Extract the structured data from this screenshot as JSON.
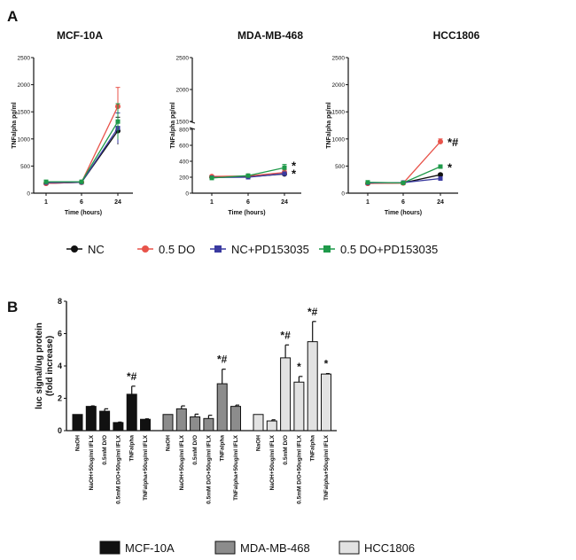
{
  "panel_a_label": "A",
  "panel_b_label": "B",
  "chart_data": [
    {
      "type": "line",
      "title": "MCF-10A",
      "xlabel": "Time (hours)",
      "ylabel": "TNFalpha pg/ml",
      "x": [
        "1",
        "6",
        "24"
      ],
      "yticks": [
        0,
        500,
        1000,
        1500,
        2000,
        2500
      ],
      "ylim": [
        0,
        2500
      ],
      "series": [
        {
          "name": "NC",
          "values": [
            180,
            200,
            1150
          ],
          "err": [
            20,
            15,
            250
          ]
        },
        {
          "name": "0.5 DO",
          "values": [
            180,
            200,
            1600
          ],
          "err": [
            20,
            15,
            350
          ]
        },
        {
          "name": "NC+PD153035",
          "values": [
            195,
            200,
            1200
          ],
          "err": [
            20,
            15,
            280
          ]
        },
        {
          "name": "0.5 DO+PD153035",
          "values": [
            210,
            210,
            1320
          ],
          "err": [
            20,
            15,
            330
          ]
        }
      ],
      "annotations": []
    },
    {
      "type": "line",
      "title": "MDA-MB-468",
      "xlabel": "Time (hours)",
      "ylabel": "TNFalpha pg/ml",
      "x": [
        "1",
        "6",
        "24"
      ],
      "yticks": [
        0,
        200,
        400,
        600,
        800,
        1500,
        2000,
        2500
      ],
      "ylim": [
        0,
        2500
      ],
      "axis_break": [
        800,
        1500
      ],
      "series": [
        {
          "name": "NC",
          "values": [
            200,
            205,
            240
          ],
          "err": [
            10,
            10,
            20
          ]
        },
        {
          "name": "0.5 DO",
          "values": [
            210,
            215,
            260
          ],
          "err": [
            10,
            10,
            30
          ]
        },
        {
          "name": "NC+PD153035",
          "values": [
            195,
            200,
            245
          ],
          "err": [
            10,
            10,
            20
          ]
        },
        {
          "name": "0.5 DO+PD153035",
          "values": [
            190,
            220,
            320
          ],
          "err": [
            10,
            10,
            40
          ]
        }
      ],
      "annotations": [
        {
          "text": "*",
          "at_value": 360
        },
        {
          "text": "*",
          "at_value": 260
        }
      ]
    },
    {
      "type": "line",
      "title": "HCC1806",
      "xlabel": "Time (hours)",
      "ylabel": "TNFalpha pg/ml",
      "x": [
        "1",
        "6",
        "24"
      ],
      "yticks": [
        0,
        500,
        1000,
        1500,
        2000,
        2500
      ],
      "ylim": [
        0,
        2500
      ],
      "series": [
        {
          "name": "NC",
          "values": [
            180,
            190,
            340
          ],
          "err": [
            15,
            10,
            25
          ]
        },
        {
          "name": "0.5 DO",
          "values": [
            180,
            185,
            950
          ],
          "err": [
            15,
            10,
            50
          ]
        },
        {
          "name": "NC+PD153035",
          "values": [
            190,
            195,
            270
          ],
          "err": [
            15,
            10,
            25
          ]
        },
        {
          "name": "0.5 DO+PD153035",
          "values": [
            200,
            190,
            490
          ],
          "err": [
            15,
            10,
            25
          ]
        }
      ],
      "annotations": [
        {
          "text": "*#",
          "at_value": 960
        },
        {
          "text": "*",
          "at_value": 500
        }
      ]
    },
    {
      "type": "bar",
      "ylabel": "luc signal/ug protein (fold increase)",
      "ylim": [
        0,
        8
      ],
      "yticks": [
        0,
        2,
        4,
        6,
        8
      ],
      "categories": [
        "NaOH",
        "NaOH+50ug/ml IFLX",
        "0.5mM D/O",
        "0.5mM D/O+50ug/ml IFLX",
        "TNFalpha",
        "TNFalpha+50ug/ml IFLX"
      ],
      "series": [
        {
          "name": "MCF-10A",
          "color": "#111111",
          "values": [
            1.0,
            1.5,
            1.2,
            0.5,
            2.25,
            0.7
          ],
          "err": [
            0,
            0.03,
            0.15,
            0.03,
            0.5,
            0.03
          ],
          "marks": [
            "",
            "",
            "",
            "",
            "*#",
            ""
          ]
        },
        {
          "name": "MDA-MB-468",
          "color": "#8c8c8c",
          "values": [
            1.0,
            1.35,
            0.85,
            0.75,
            2.9,
            1.5
          ],
          "err": [
            0,
            0.18,
            0.17,
            0.2,
            0.9,
            0.08
          ],
          "marks": [
            "",
            "",
            "",
            "",
            "*#",
            ""
          ]
        },
        {
          "name": "HCC1806",
          "color": "#e2e2e2",
          "values": [
            1.0,
            0.6,
            4.5,
            3.0,
            5.5,
            3.5
          ],
          "err": [
            0,
            0.07,
            0.8,
            0.35,
            1.25,
            0.03
          ],
          "marks": [
            "",
            "",
            "*#",
            "*",
            "*#",
            "*"
          ]
        }
      ]
    }
  ],
  "line_legend": [
    {
      "label": "NC",
      "color": "#111111",
      "marker": "circle"
    },
    {
      "label": "0.5 DO",
      "color": "#e8534a",
      "marker": "circle"
    },
    {
      "label": "NC+PD153035",
      "color": "#3a3aa0",
      "marker": "square"
    },
    {
      "label": "0.5 DO+PD153035",
      "color": "#1f9a4a",
      "marker": "square"
    }
  ]
}
